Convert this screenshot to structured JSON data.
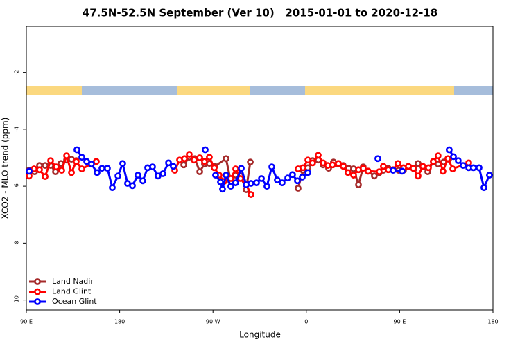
{
  "chart_data": {
    "type": "line",
    "title": "47.5N-52.5N September (Ver 10)   2015-01-01 to 2020-12-18",
    "x_label": "Longitude",
    "y_label": "XCO2 - MLO trend (ppm)",
    "xlim": [
      90,
      540
    ],
    "xticks": [
      {
        "value": 90,
        "label": "90 E"
      },
      {
        "value": 180,
        "label": "180"
      },
      {
        "value": 270,
        "label": "90 W"
      },
      {
        "value": 360,
        "label": "0"
      },
      {
        "value": 450,
        "label": "90 E"
      },
      {
        "value": 540,
        "label": "180"
      }
    ],
    "ylim": [
      -10.35,
      -0.38
    ],
    "yticks": [
      -2,
      -4,
      -6,
      -8,
      -10
    ],
    "grid": false,
    "legend": "bottom-left",
    "series": [
      {
        "name": "Land Nadir",
        "color": "#a52a2a",
        "x": [
          92.7,
          98.0,
          102.7,
          108.1,
          113.4,
          118.1,
          123.4,
          128.8,
          133.5,
          138.1,
          null,
          241.8,
          247.1,
          252.5,
          257.2,
          261.8,
          266.5,
          271.9,
          282.6,
          287.2,
          291.9,
          296.6,
          302.0,
          306.0,
          null,
          352.1,
          356.8,
          361.5,
          366.1,
          371.5,
          376.2,
          381.5,
          386.2,
          390.9,
          395.6,
          400.9,
          405.6,
          410.3,
          414.9,
          419.6,
          425.6,
          430.3,
          434.3,
          439.0,
          443.7,
          449.0,
          453.7,
          459.1,
          463.8,
          467.8,
          472.4,
          477.1,
          482.5,
          487.1,
          492.5,
          497.2
        ],
        "values": [
          -5.44,
          -5.49,
          -5.27,
          -5.27,
          -5.27,
          -5.49,
          -5.2,
          -5.08,
          -5.05,
          -5.1,
          null,
          -5.25,
          -4.98,
          -5.03,
          -5.49,
          -5.22,
          -5.2,
          -5.3,
          -5.03,
          -5.83,
          -5.61,
          -5.64,
          -6.12,
          -5.15,
          null,
          -6.07,
          -5.44,
          -5.35,
          -5.1,
          -5.08,
          -5.25,
          -5.37,
          -5.15,
          -5.22,
          -5.27,
          -5.37,
          -5.39,
          -5.95,
          -5.32,
          -5.47,
          -5.64,
          -5.52,
          -5.44,
          -5.37,
          -5.42,
          -5.44,
          -5.44,
          -5.32,
          -5.39,
          -5.2,
          -5.32,
          -5.49,
          -5.13,
          -5.22,
          -5.15,
          -5.05
        ]
      },
      {
        "name": "Land Glint",
        "color": "#ff0000",
        "x": [
          92.7,
          97.4,
          102.7,
          108.1,
          113.4,
          118.8,
          124.1,
          128.8,
          133.5,
          138.1,
          143.5,
          157.5,
          null,
          233.1,
          237.8,
          242.5,
          247.1,
          251.8,
          257.2,
          261.8,
          266.5,
          271.2,
          275.9,
          280.6,
          287.2,
          291.9,
          296.6,
          302.0,
          306.6,
          null,
          352.1,
          356.8,
          361.5,
          366.1,
          371.5,
          376.2,
          380.8,
          385.5,
          390.9,
          395.6,
          400.2,
          405.6,
          410.3,
          414.9,
          419.6,
          430.3,
          434.3,
          439.0,
          443.7,
          448.4,
          453.7,
          458.4,
          463.1,
          467.8,
          472.4,
          477.8,
          482.5,
          487.1,
          491.8,
          496.5,
          501.2,
          516.6
        ],
        "values": [
          -5.64,
          -5.39,
          -5.42,
          -5.66,
          -5.1,
          -5.32,
          -5.44,
          -4.93,
          -5.52,
          -5.13,
          -5.39,
          -5.13,
          null,
          -5.44,
          -5.08,
          -5.03,
          -4.88,
          -5.08,
          -5.0,
          -5.13,
          -4.98,
          -5.35,
          -5.61,
          -5.83,
          -5.73,
          -5.39,
          -5.73,
          -5.95,
          -6.29,
          null,
          -5.39,
          -5.35,
          -5.08,
          -5.18,
          -4.91,
          -5.18,
          -5.27,
          -5.25,
          -5.2,
          -5.3,
          -5.52,
          -5.61,
          -5.42,
          -5.37,
          -5.47,
          -5.49,
          -5.3,
          -5.42,
          -5.42,
          -5.2,
          -5.35,
          -5.3,
          -5.37,
          -5.64,
          -5.3,
          -5.35,
          -5.13,
          -4.93,
          -5.47,
          -5.03,
          -5.39,
          -5.18
        ]
      },
      {
        "name": "Ocean Glint",
        "color": "#0000ff",
        "x": [
          92.7,
          null,
          138.8,
          143.5,
          148.2,
          152.8,
          158.2,
          162.9,
          168.2,
          172.9,
          178.3,
          182.9,
          187.6,
          192.3,
          197.6,
          202.3,
          207.0,
          211.7,
          217.0,
          221.7,
          227.1,
          231.7,
          null,
          262.5,
          null,
          272.5,
          277.2,
          279.2,
          282.6,
          287.2,
          291.9,
          297.3,
          302.0,
          306.6,
          312.0,
          316.7,
          322.0,
          326.7,
          332.0,
          336.7,
          342.1,
          346.7,
          351.4,
          356.1,
          361.5,
          null,
          429.0,
          null,
          443.7,
          452.4,
          null,
          497.8,
          501.9,
          506.5,
          511.2,
          516.6,
          521.2,
          526.6,
          531.3,
          536.6
        ],
        "values": [
          -5.47,
          null,
          -4.72,
          -4.98,
          -5.13,
          -5.22,
          -5.52,
          -5.37,
          -5.37,
          -6.05,
          -5.64,
          -5.2,
          -5.9,
          -5.98,
          -5.61,
          -5.81,
          -5.35,
          -5.32,
          -5.64,
          -5.56,
          -5.18,
          -5.3,
          null,
          -4.72,
          null,
          -5.61,
          -5.85,
          -6.1,
          -5.61,
          -6.0,
          -5.88,
          -5.37,
          -5.95,
          -5.9,
          -5.88,
          -5.73,
          -6.0,
          -5.32,
          -5.78,
          -5.88,
          -5.71,
          -5.59,
          -5.81,
          -5.68,
          -5.52,
          null,
          -5.03,
          null,
          -5.44,
          -5.47,
          null,
          -4.72,
          -4.96,
          -5.1,
          -5.27,
          -5.35,
          -5.35,
          -5.35,
          -6.05,
          -5.61
        ]
      }
    ]
  }
}
